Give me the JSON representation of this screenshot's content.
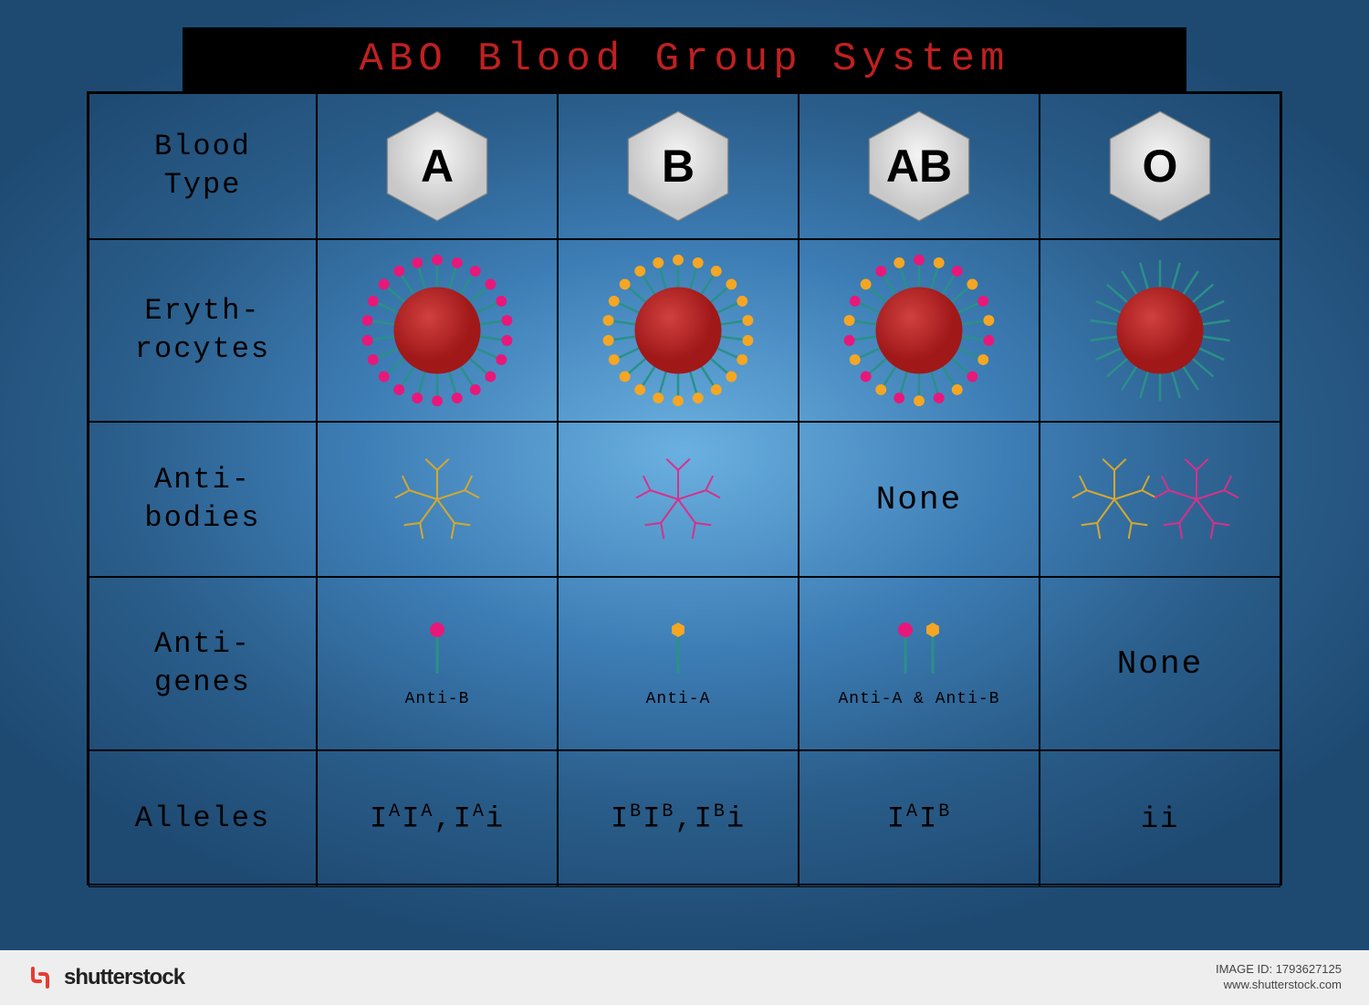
{
  "title": "ABO Blood Group System",
  "colors": {
    "title_bg": "#000000",
    "title_text": "#c02020",
    "grid_border": "#000000",
    "hex_fill_light": "#f5f5f5",
    "hex_fill_dark": "#c8c8c8",
    "cell_red": "#a01818",
    "cell_red_light": "#d04040",
    "antigen_pink": "#e8187a",
    "antigen_yellow": "#f5a623",
    "antibody_yellow": "#d4a830",
    "antibody_pink": "#d8308a",
    "stem_teal": "#2a9088"
  },
  "rows": {
    "blood_type": "Blood\nType",
    "erythrocytes": "Eryth-\nrocytes",
    "antibodies": "Anti-\nbodies",
    "antigenes": "Anti-\ngenes",
    "alleles": "Alleles"
  },
  "blood_types": [
    {
      "label": "A",
      "antigens": [
        "pink"
      ],
      "antibodies": [
        "yellow"
      ],
      "antigen_label": "Anti-B",
      "alleles": "I<sup>A</sup>I<sup>A</sup>,I<sup>A</sup>i"
    },
    {
      "label": "B",
      "antigens": [
        "yellow"
      ],
      "antibodies": [
        "pink"
      ],
      "antigen_label": "Anti-A",
      "alleles": "I<sup>B</sup>I<sup>B</sup>,I<sup>B</sup>i"
    },
    {
      "label": "AB",
      "antigens": [
        "pink",
        "yellow"
      ],
      "antibodies": [],
      "antibody_text": "None",
      "antigen_label": "Anti-A & Anti-B",
      "alleles": "I<sup>A</sup>I<sup>B</sup>"
    },
    {
      "label": "O",
      "antigens": [],
      "antibodies": [
        "yellow",
        "pink"
      ],
      "antigen_text": "None",
      "alleles": "ii"
    }
  ],
  "erythrocyte": {
    "cell_radius": 48,
    "spike_count": 22,
    "spike_length": 30,
    "antigen_tip_radius": 6
  },
  "footer": {
    "logo": "shutterstock",
    "image_id": "IMAGE ID: 1793627125",
    "site": "www.shutterstock.com"
  }
}
